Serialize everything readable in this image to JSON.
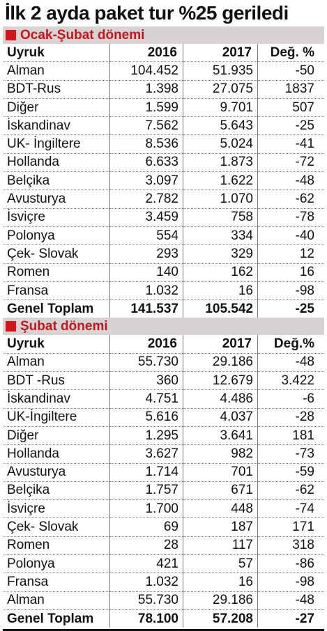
{
  "title": "İlk 2 ayda paket tur %25 geriledi",
  "sections": [
    {
      "heading": "Ocak-Şubat dönemi",
      "columns": [
        "Uyruk",
        "2016",
        "2017",
        "Değ. %"
      ],
      "rows": [
        [
          "Alman",
          "104.452",
          "51.935",
          "-50"
        ],
        [
          "BDT-Rus",
          "1.398",
          "27.075",
          "1837"
        ],
        [
          "Diğer",
          "1.599",
          "9.701",
          "507"
        ],
        [
          "İskandinav",
          "7.562",
          "5.643",
          "-25"
        ],
        [
          "UK- İngiltere",
          "8.536",
          "5.024",
          "-41"
        ],
        [
          "Hollanda",
          "6.633",
          "1.873",
          "-72"
        ],
        [
          "Belçika",
          "3.097",
          "1.622",
          "-48"
        ],
        [
          "Avusturya",
          "2.782",
          "1.070",
          "-62"
        ],
        [
          "İsviçre",
          "3.459",
          "758",
          "-78"
        ],
        [
          "Polonya",
          "554",
          "334",
          "-40"
        ],
        [
          "Çek- Slovak",
          "293",
          "329",
          "12"
        ],
        [
          "Romen",
          "140",
          "162",
          "16"
        ],
        [
          "Fransa",
          "1.032",
          "16",
          "-98"
        ]
      ],
      "total": [
        "Genel Toplam",
        "141.537",
        "105.542",
        "-25"
      ]
    },
    {
      "heading": "Şubat dönemi",
      "columns": [
        "Uyruk",
        "2016",
        "2017",
        "Değ.%"
      ],
      "rows": [
        [
          "Alman",
          "55.730",
          "29.186",
          "-48"
        ],
        [
          "BDT -Rus",
          "360",
          "12.679",
          "3.422"
        ],
        [
          "İskandinav",
          "4.751",
          "4.486",
          "-6"
        ],
        [
          "UK-İngiltere",
          "5.616",
          "4.037",
          "-28"
        ],
        [
          "Diğer",
          "1.295",
          "3.641",
          "181"
        ],
        [
          "Hollanda",
          "3.627",
          "982",
          "-73"
        ],
        [
          "Avusturya",
          "1.714",
          "701",
          "-59"
        ],
        [
          "Belçika",
          "1.757",
          "671",
          "-62"
        ],
        [
          "İsviçre",
          "1.700",
          "448",
          "-74"
        ],
        [
          "Çek- Slovak",
          "69",
          "187",
          "171"
        ],
        [
          "Romen",
          "28",
          "117",
          "318"
        ],
        [
          "Polonya",
          "421",
          "57",
          "-86"
        ],
        [
          "Fransa",
          "1.032",
          "16",
          "-98"
        ],
        [
          "Alman",
          "55.730",
          "29.186",
          "-48"
        ]
      ],
      "total": [
        "Genel Toplam",
        "78.100",
        "57.208",
        "-27"
      ]
    }
  ]
}
